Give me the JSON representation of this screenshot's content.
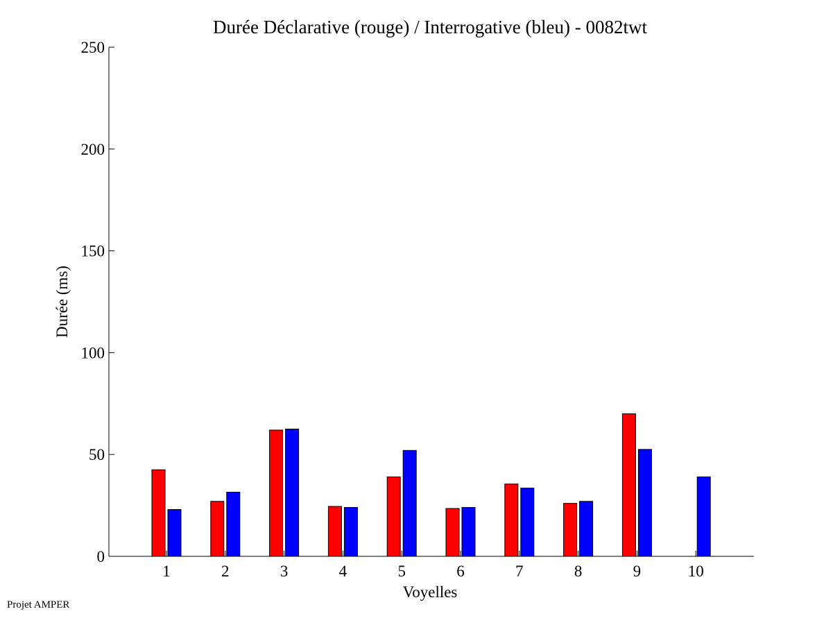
{
  "chart_data": {
    "type": "bar",
    "title": "Durée Déclarative (rouge) / Interrogative (bleu) - 0082twt",
    "xlabel": "Voyelles",
    "ylabel": "Durée (ms)",
    "ylim": [
      0,
      250
    ],
    "yticks": [
      "0",
      "50",
      "100",
      "150",
      "200",
      "250"
    ],
    "categories": [
      "1",
      "2",
      "3",
      "4",
      "5",
      "6",
      "7",
      "8",
      "9",
      "10"
    ],
    "grid": false,
    "series": [
      {
        "color": "#ff0000",
        "values": [
          42.5,
          27,
          62,
          24.5,
          39,
          23.5,
          35.5,
          26,
          70,
          0
        ]
      },
      {
        "color": "#0000ff",
        "values": [
          23,
          31.5,
          62.5,
          24,
          52,
          24,
          33.5,
          27,
          52.5,
          39
        ]
      }
    ]
  },
  "footer": {
    "credit": "Projet AMPER"
  }
}
